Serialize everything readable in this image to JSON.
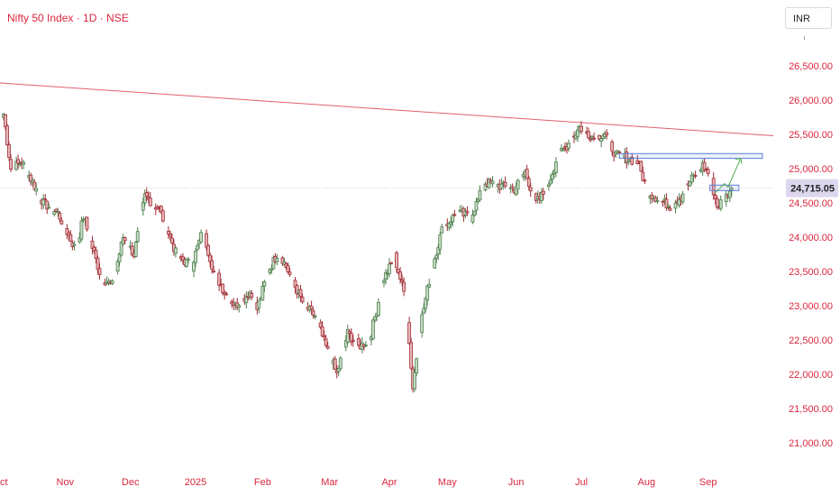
{
  "header": {
    "title": "Nifty 50 Index · 1D · NSE",
    "currency": "INR"
  },
  "colors": {
    "up": "#4f7f4f",
    "up_fill": "#c6dcc4",
    "down": "#a02b33",
    "down_fill": "#e7b7ba",
    "trendline": "#e06070",
    "zone": "#5b7fd6",
    "arrow": "#4caf50",
    "price_label_bg": "#dcd6ee",
    "axis_text": "#d8273d"
  },
  "chart_data": {
    "type": "candlestick",
    "title": "Nifty 50 Index · 1D · NSE",
    "ylim": [
      20700,
      26900
    ],
    "y_ticks": [
      21000,
      21500,
      22000,
      22500,
      23000,
      23500,
      24000,
      24500,
      25000,
      25500,
      26000,
      26500
    ],
    "y_tick_labels": [
      "21,000.00",
      "21,500.00",
      "22,000.00",
      "22,500.00",
      "23,000.00",
      "23,500.00",
      "24,000.00",
      "24,500.00",
      "25,000.00",
      "25,500.00",
      "26,000.00",
      "26,500.00"
    ],
    "x_tick_labels": [
      "Oct",
      "Nov",
      "Dec",
      "2025",
      "Feb",
      "Mar",
      "Apr",
      "May",
      "Jun",
      "Jul",
      "Aug",
      "Sep"
    ],
    "x_tick_index": [
      -2,
      34,
      70,
      106,
      143,
      180,
      213,
      245,
      283,
      319,
      355,
      389
    ],
    "last_price": 24715.05,
    "last_price_label": "24,715.05",
    "grid": false,
    "trendline": {
      "from": [
        -2,
        26250
      ],
      "to": [
        425,
        25480
      ]
    },
    "zones": [
      {
        "x0": 340,
        "x1": 419,
        "low": 25150,
        "high": 25220
      },
      {
        "x0": 390,
        "x1": 406,
        "low": 24680,
        "high": 24760
      }
    ],
    "projection_arrow": {
      "from": [
        393,
        24650
      ],
      "to": [
        407,
        25150
      ]
    },
    "anchors": [
      [
        0,
        25800
      ],
      [
        4,
        25000
      ],
      [
        10,
        25100
      ],
      [
        22,
        24500
      ],
      [
        30,
        24350
      ],
      [
        40,
        23800
      ],
      [
        44,
        24300
      ],
      [
        54,
        23400
      ],
      [
        60,
        23300
      ],
      [
        66,
        24000
      ],
      [
        72,
        23750
      ],
      [
        78,
        24600
      ],
      [
        86,
        24400
      ],
      [
        92,
        24000
      ],
      [
        96,
        23700
      ],
      [
        104,
        23600
      ],
      [
        110,
        24100
      ],
      [
        116,
        23500
      ],
      [
        122,
        23200
      ],
      [
        128,
        23000
      ],
      [
        136,
        23200
      ],
      [
        140,
        22950
      ],
      [
        146,
        23500
      ],
      [
        152,
        23800
      ],
      [
        158,
        23450
      ],
      [
        166,
        23000
      ],
      [
        172,
        22850
      ],
      [
        178,
        22400
      ],
      [
        184,
        22000
      ],
      [
        190,
        22600
      ],
      [
        196,
        22400
      ],
      [
        202,
        22500
      ],
      [
        210,
        23400
      ],
      [
        216,
        23700
      ],
      [
        222,
        23100
      ],
      [
        226,
        21800
      ],
      [
        230,
        22700
      ],
      [
        236,
        23500
      ],
      [
        242,
        24100
      ],
      [
        250,
        24350
      ],
      [
        258,
        24300
      ],
      [
        266,
        24800
      ],
      [
        274,
        24750
      ],
      [
        282,
        24700
      ],
      [
        288,
        24950
      ],
      [
        294,
        24500
      ],
      [
        300,
        24700
      ],
      [
        306,
        25200
      ],
      [
        310,
        25300
      ],
      [
        318,
        25600
      ],
      [
        326,
        25450
      ],
      [
        332,
        25520
      ],
      [
        338,
        25200
      ],
      [
        344,
        25150
      ],
      [
        350,
        25100
      ],
      [
        356,
        24650
      ],
      [
        362,
        24550
      ],
      [
        368,
        24450
      ],
      [
        374,
        24600
      ],
      [
        380,
        24850
      ],
      [
        386,
        25050
      ],
      [
        390,
        24900
      ],
      [
        394,
        24450
      ],
      [
        398,
        24560
      ],
      [
        402,
        24715
      ]
    ]
  }
}
